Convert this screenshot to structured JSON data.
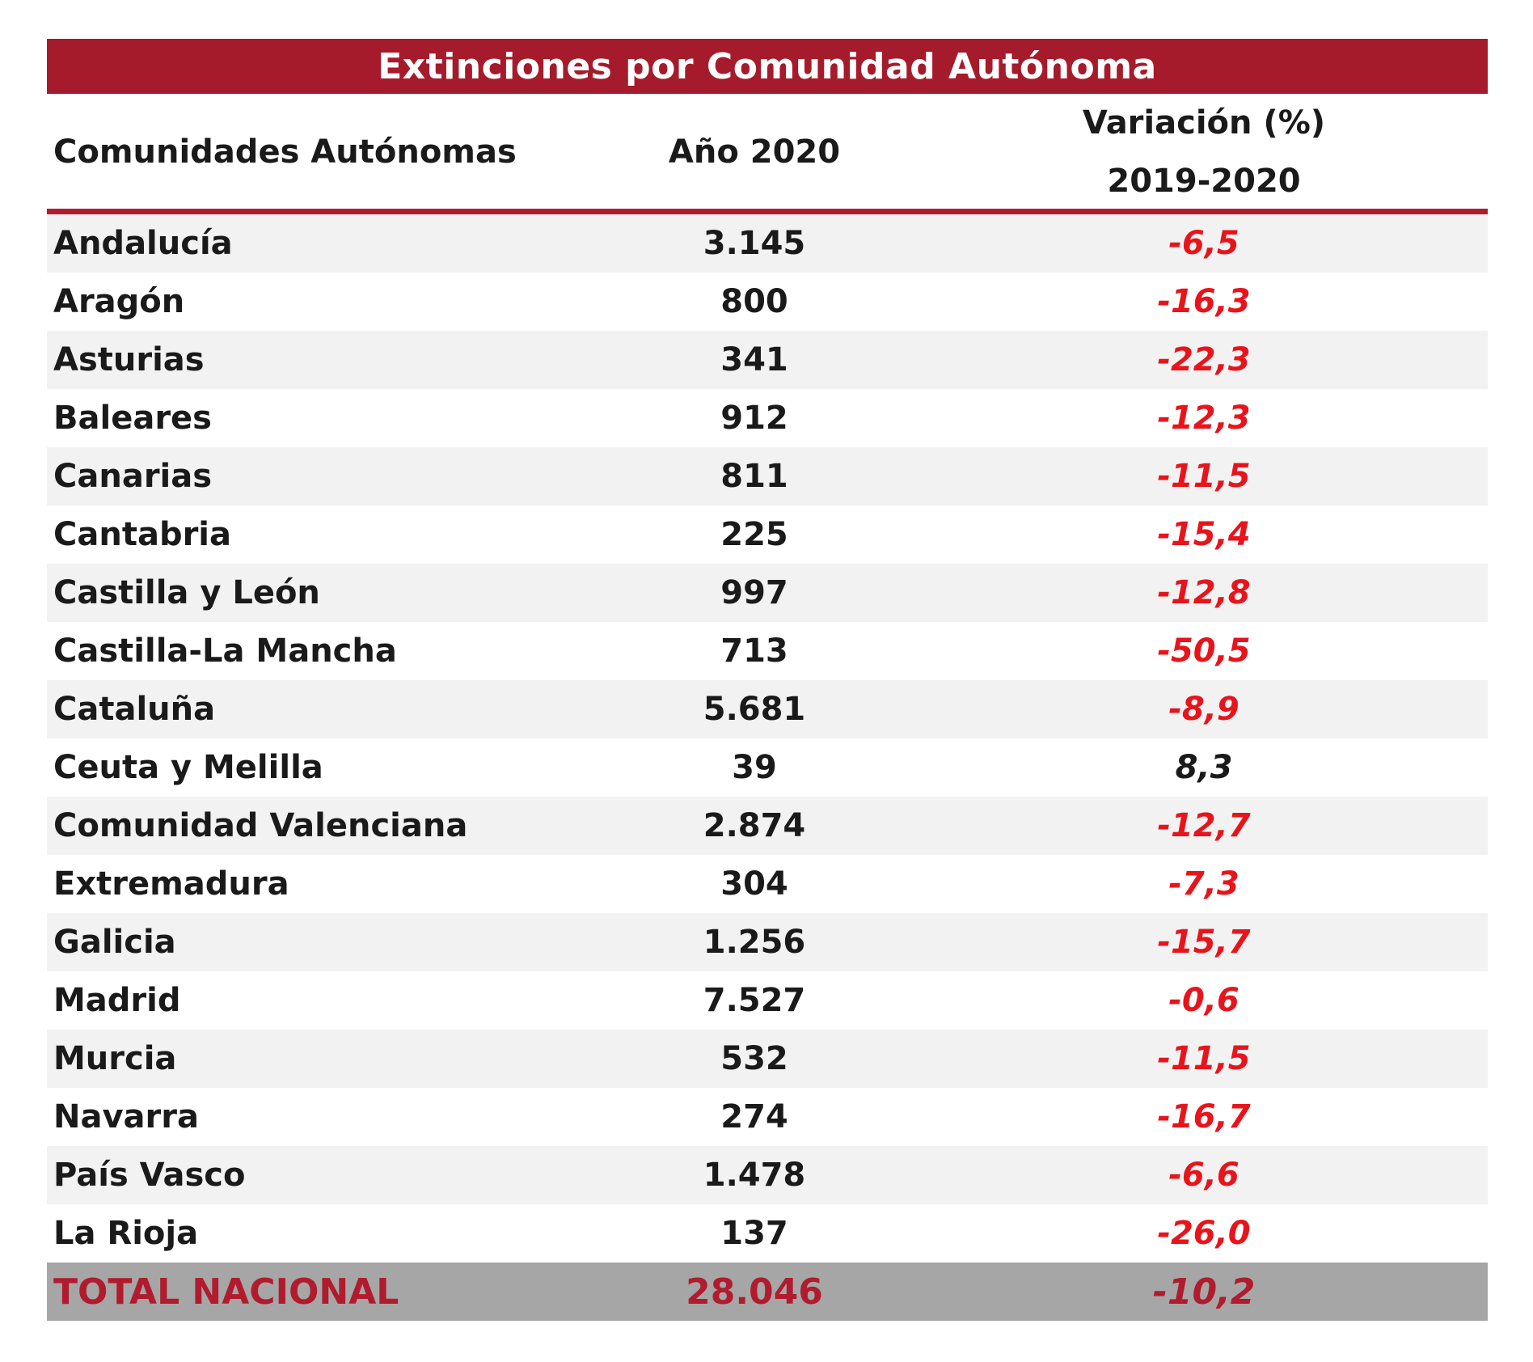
{
  "title": "Extinciones por Comunidad Autónoma",
  "headers": {
    "name": "Comunidades Autónomas",
    "year": "Año 2020",
    "variation_line1": "Variación (%)",
    "variation_line2": "2019-2020"
  },
  "rows": [
    {
      "name": "Andalucía",
      "value": "3.145",
      "variation": "-6,5"
    },
    {
      "name": "Aragón",
      "value": "800",
      "variation": "-16,3"
    },
    {
      "name": "Asturias",
      "value": "341",
      "variation": "-22,3"
    },
    {
      "name": "Baleares",
      "value": "912",
      "variation": "-12,3"
    },
    {
      "name": "Canarias",
      "value": "811",
      "variation": "-11,5"
    },
    {
      "name": "Cantabria",
      "value": "225",
      "variation": "-15,4"
    },
    {
      "name": "Castilla y León",
      "value": "997",
      "variation": "-12,8"
    },
    {
      "name": "Castilla-La Mancha",
      "value": "713",
      "variation": "-50,5"
    },
    {
      "name": "Cataluña",
      "value": "5.681",
      "variation": "-8,9"
    },
    {
      "name": "Ceuta y Melilla",
      "value": "39",
      "variation": "8,3"
    },
    {
      "name": "Comunidad Valenciana",
      "value": "2.874",
      "variation": "-12,7"
    },
    {
      "name": "Extremadura",
      "value": "304",
      "variation": "-7,3"
    },
    {
      "name": "Galicia",
      "value": "1.256",
      "variation": "-15,7"
    },
    {
      "name": "Madrid",
      "value": "7.527",
      "variation": "-0,6"
    },
    {
      "name": "Murcia",
      "value": "532",
      "variation": "-11,5"
    },
    {
      "name": "Navarra",
      "value": "274",
      "variation": "-16,7"
    },
    {
      "name": "País Vasco",
      "value": "1.478",
      "variation": "-6,6"
    },
    {
      "name": "La Rioja",
      "value": "137",
      "variation": "-26,0"
    }
  ],
  "total": {
    "name": "TOTAL NACIONAL",
    "value": "28.046",
    "variation": "-10,2"
  },
  "colors": {
    "title_bg": "#a61b2b",
    "negative": "#e8141c",
    "total_bg": "#a6a6a6",
    "total_text": "#b01c2e",
    "row_shade": "#f2f2f2"
  }
}
